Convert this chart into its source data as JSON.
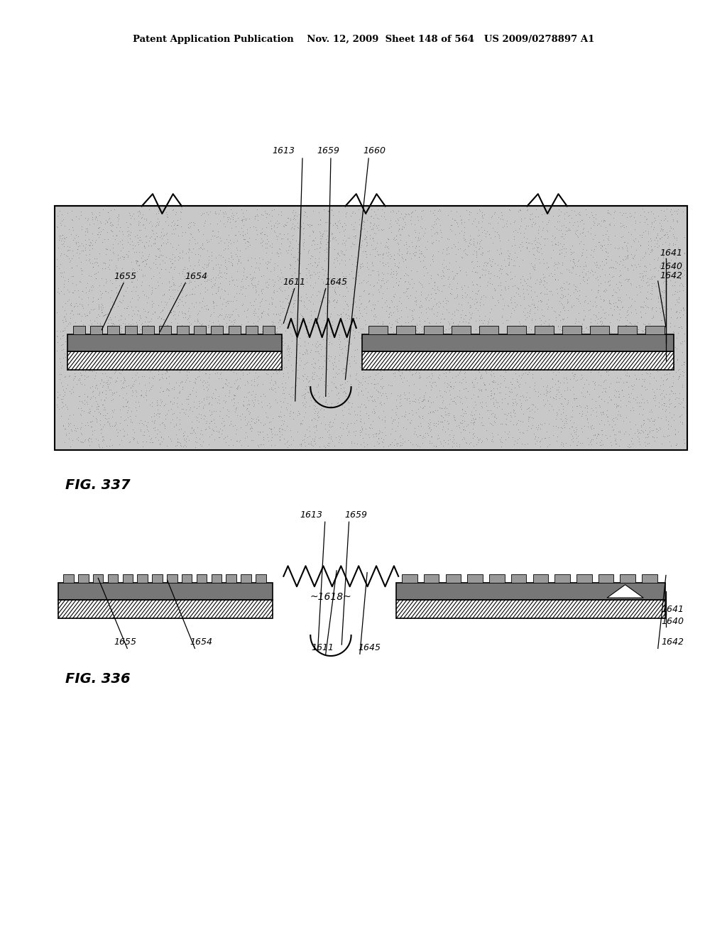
{
  "bg_color": "#ffffff",
  "header_text": "Patent Application Publication    Nov. 12, 2009  Sheet 148 of 564   US 2009/0278897 A1",
  "fig1_label": "FIG. 336",
  "fig2_label": "FIG. 337"
}
